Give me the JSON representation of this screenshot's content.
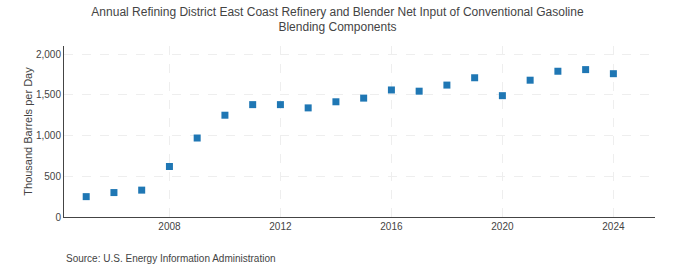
{
  "chart_data": {
    "type": "scatter",
    "title": "Annual Refining District East Coast Refinery and Blender Net Input of Conventional Gasoline\nBlending Components",
    "y_label": "Thousand Barrels per Day",
    "annotations": [
      "Source: U.S. Energy Information Administration"
    ],
    "x": [
      2005,
      2006,
      2007,
      2008,
      2009,
      2010,
      2011,
      2012,
      2013,
      2014,
      2015,
      2016,
      2017,
      2018,
      2019,
      2020,
      2021,
      2022,
      2023,
      2024
    ],
    "values": [
      250,
      300,
      330,
      620,
      970,
      1250,
      1380,
      1380,
      1340,
      1415,
      1460,
      1560,
      1545,
      1620,
      1710,
      1490,
      1680,
      1790,
      1810,
      1760
    ],
    "marker": "square",
    "xlim": [
      2004.2,
      2025.5
    ],
    "xticks": [
      2008,
      2012,
      2016,
      2020,
      2024
    ],
    "ylim": [
      0,
      2100
    ],
    "yticks": [
      0,
      500,
      {
        "value": 1000,
        "label": "1,000"
      },
      {
        "value": 1500,
        "label": "1,500"
      },
      {
        "value": 2000,
        "label": "2,000"
      }
    ],
    "grid": true
  }
}
